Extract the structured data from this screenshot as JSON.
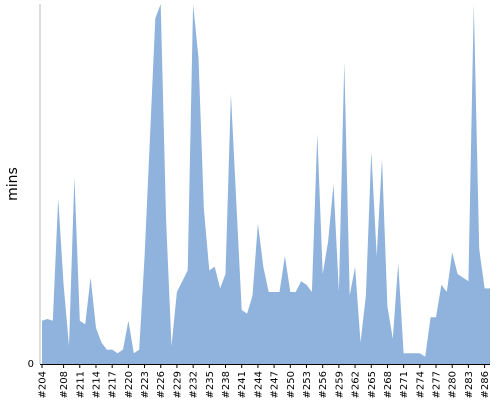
{
  "chart_data": {
    "type": "area",
    "ylabel": "mins",
    "ylim": [
      0,
      100
    ],
    "y_ticks": [
      "0"
    ],
    "x_tick_labels": [
      "#204",
      "#208",
      "#211",
      "#214",
      "#217",
      "#220",
      "#223",
      "#226",
      "#229",
      "#232",
      "#235",
      "#238",
      "#241",
      "#244",
      "#247",
      "#250",
      "#253",
      "#256",
      "#259",
      "#262",
      "#265",
      "#268",
      "#271",
      "#274",
      "#277",
      "#280",
      "#283",
      "#286"
    ],
    "x_ticks_at": [
      204,
      208,
      211,
      214,
      217,
      220,
      223,
      226,
      229,
      232,
      235,
      238,
      241,
      244,
      247,
      250,
      253,
      256,
      259,
      262,
      265,
      268,
      271,
      274,
      277,
      280,
      283,
      286
    ],
    "color": "#8fb3dc",
    "x_range": [
      204,
      287
    ],
    "x": [
      204,
      205,
      206,
      207,
      208,
      209,
      210,
      211,
      212,
      213,
      214,
      215,
      216,
      217,
      218,
      219,
      220,
      221,
      222,
      223,
      224,
      225,
      226,
      227,
      228,
      229,
      230,
      231,
      232,
      233,
      234,
      235,
      236,
      237,
      238,
      239,
      240,
      241,
      242,
      243,
      244,
      245,
      246,
      247,
      248,
      249,
      250,
      251,
      252,
      253,
      254,
      255,
      256,
      257,
      258,
      259,
      260,
      261,
      262,
      263,
      264,
      265,
      266,
      267,
      268,
      269,
      270,
      271,
      272,
      273,
      274,
      275,
      276,
      277,
      278,
      279,
      280,
      281,
      282,
      283,
      284,
      285,
      286,
      287
    ],
    "values": [
      12,
      12.5,
      12,
      46,
      22,
      5,
      52,
      12,
      11,
      24,
      10,
      6,
      4,
      4,
      3,
      4,
      12,
      3,
      4,
      30,
      63,
      96,
      121,
      40,
      5,
      20,
      23,
      26,
      112,
      85,
      43,
      26,
      27,
      21,
      25,
      75,
      45,
      15,
      14,
      19,
      39,
      27,
      20,
      20,
      20,
      30,
      20,
      20,
      23,
      22,
      20,
      64,
      25,
      34,
      50,
      20,
      84,
      19,
      27,
      6,
      19,
      59,
      30,
      57,
      16,
      7,
      28,
      3,
      3,
      3,
      3,
      2,
      13,
      13,
      22,
      20,
      31,
      25,
      24,
      23,
      112,
      32,
      21,
      21
    ]
  }
}
